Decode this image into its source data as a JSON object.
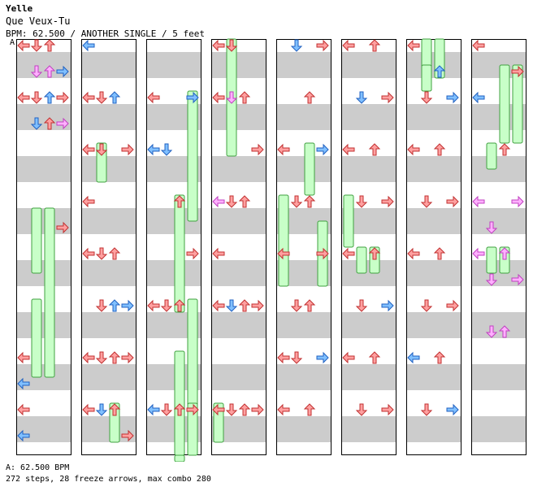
{
  "header": {
    "artist": "Yelle",
    "title": "Que Veux-Tu",
    "info": "BPM: 62.500 / ANOTHER SINGLE / 5 feet"
  },
  "segment_label": "A",
  "footer": {
    "bpm_line": "A: 62.500 BPM",
    "stats_line": "272 steps, 28 freeze arrows, max combo 280"
  },
  "colors": {
    "stripe": "#cccccc",
    "quarter_red": "#ffa0a0",
    "quarter_stroke": "#c03030",
    "eighth_blue": "#80c0ff",
    "eighth_stroke": "#2060c0",
    "sixteenth_pink": "#ffb0ff",
    "sixteenth_stroke": "#c040c0",
    "freeze_fill": "#c8ffc8",
    "freeze_stroke": "#40a040"
  },
  "chart_data": {
    "type": "step-chart",
    "columns": 8,
    "lanes": [
      "left",
      "down",
      "up",
      "right"
    ],
    "notes": [
      [
        0,
        0,
        0,
        "R"
      ],
      [
        0,
        0,
        2,
        "L"
      ],
      [
        0,
        0,
        12,
        "R"
      ],
      [
        0,
        0,
        13,
        "B"
      ],
      [
        0,
        0,
        14,
        "R"
      ],
      [
        0,
        0,
        15,
        "B"
      ],
      [
        0,
        1,
        0,
        "R"
      ],
      [
        0,
        1,
        1,
        "P"
      ],
      [
        0,
        1,
        2,
        "R"
      ],
      [
        0,
        1,
        3,
        "B"
      ],
      [
        0,
        2,
        0,
        "R"
      ],
      [
        0,
        2,
        1,
        "P"
      ],
      [
        0,
        2,
        2,
        "B"
      ],
      [
        0,
        2,
        3,
        "R"
      ],
      [
        0,
        3,
        1,
        "B"
      ],
      [
        0,
        3,
        2,
        "R"
      ],
      [
        0,
        3,
        3,
        "P"
      ],
      [
        0,
        3,
        7,
        "R"
      ],
      [
        1,
        0,
        0,
        "B"
      ],
      [
        1,
        0,
        2,
        "R"
      ],
      [
        1,
        0,
        4,
        "R"
      ],
      [
        1,
        0,
        6,
        "R"
      ],
      [
        1,
        0,
        8,
        "R"
      ],
      [
        1,
        0,
        12,
        "R"
      ],
      [
        1,
        0,
        14,
        "R"
      ],
      [
        1,
        1,
        2,
        "R"
      ],
      [
        1,
        1,
        4,
        "R"
      ],
      [
        1,
        1,
        8,
        "R"
      ],
      [
        1,
        1,
        10,
        "R"
      ],
      [
        1,
        1,
        12,
        "R"
      ],
      [
        1,
        1,
        14,
        "B"
      ],
      [
        1,
        2,
        2,
        "B"
      ],
      [
        1,
        2,
        8,
        "R"
      ],
      [
        1,
        2,
        10,
        "B"
      ],
      [
        1,
        2,
        12,
        "R"
      ],
      [
        1,
        2,
        14,
        "R"
      ],
      [
        1,
        3,
        4,
        "R"
      ],
      [
        1,
        3,
        10,
        "B"
      ],
      [
        1,
        3,
        12,
        "R"
      ],
      [
        1,
        3,
        15,
        "R"
      ],
      [
        2,
        0,
        2,
        "R"
      ],
      [
        2,
        0,
        4,
        "B"
      ],
      [
        2,
        0,
        10,
        "R"
      ],
      [
        2,
        0,
        14,
        "B"
      ],
      [
        2,
        1,
        4,
        "B"
      ],
      [
        2,
        1,
        10,
        "R"
      ],
      [
        2,
        1,
        14,
        "R"
      ],
      [
        2,
        2,
        6,
        "R"
      ],
      [
        2,
        2,
        10,
        "R"
      ],
      [
        2,
        2,
        14,
        "R"
      ],
      [
        2,
        3,
        2,
        "B"
      ],
      [
        2,
        3,
        8,
        "R"
      ],
      [
        2,
        3,
        14,
        "R"
      ],
      [
        3,
        0,
        0,
        "R"
      ],
      [
        3,
        0,
        2,
        "R"
      ],
      [
        3,
        0,
        6,
        "P"
      ],
      [
        3,
        0,
        8,
        "R"
      ],
      [
        3,
        0,
        10,
        "R"
      ],
      [
        3,
        0,
        14,
        "R"
      ],
      [
        3,
        1,
        0,
        "R"
      ],
      [
        3,
        1,
        2,
        "P"
      ],
      [
        3,
        1,
        6,
        "R"
      ],
      [
        3,
        1,
        10,
        "B"
      ],
      [
        3,
        1,
        14,
        "R"
      ],
      [
        3,
        2,
        2,
        "R"
      ],
      [
        3,
        2,
        6,
        "R"
      ],
      [
        3,
        2,
        10,
        "R"
      ],
      [
        3,
        2,
        14,
        "R"
      ],
      [
        3,
        3,
        4,
        "R"
      ],
      [
        3,
        3,
        10,
        "R"
      ],
      [
        3,
        3,
        14,
        "R"
      ],
      [
        4,
        0,
        4,
        "R"
      ],
      [
        4,
        0,
        8,
        "R"
      ],
      [
        4,
        0,
        12,
        "R"
      ],
      [
        4,
        0,
        14,
        "R"
      ],
      [
        4,
        1,
        0,
        "B"
      ],
      [
        4,
        1,
        6,
        "R"
      ],
      [
        4,
        1,
        10,
        "R"
      ],
      [
        4,
        1,
        12,
        "R"
      ],
      [
        4,
        2,
        2,
        "R"
      ],
      [
        4,
        2,
        6,
        "R"
      ],
      [
        4,
        2,
        10,
        "R"
      ],
      [
        4,
        2,
        14,
        "R"
      ],
      [
        4,
        3,
        0,
        "R"
      ],
      [
        4,
        3,
        4,
        "B"
      ],
      [
        4,
        3,
        8,
        "R"
      ],
      [
        4,
        3,
        12,
        "B"
      ],
      [
        5,
        0,
        0,
        "R"
      ],
      [
        5,
        0,
        4,
        "R"
      ],
      [
        5,
        0,
        8,
        "R"
      ],
      [
        5,
        0,
        12,
        "R"
      ],
      [
        5,
        1,
        2,
        "B"
      ],
      [
        5,
        1,
        6,
        "R"
      ],
      [
        5,
        1,
        10,
        "R"
      ],
      [
        5,
        1,
        14,
        "R"
      ],
      [
        5,
        2,
        0,
        "R"
      ],
      [
        5,
        2,
        4,
        "R"
      ],
      [
        5,
        2,
        8,
        "R"
      ],
      [
        5,
        2,
        12,
        "R"
      ],
      [
        5,
        3,
        2,
        "R"
      ],
      [
        5,
        3,
        6,
        "R"
      ],
      [
        5,
        3,
        10,
        "B"
      ],
      [
        5,
        3,
        14,
        "R"
      ],
      [
        6,
        0,
        0,
        "R"
      ],
      [
        6,
        0,
        4,
        "R"
      ],
      [
        6,
        0,
        8,
        "R"
      ],
      [
        6,
        0,
        12,
        "B"
      ],
      [
        6,
        1,
        2,
        "R"
      ],
      [
        6,
        1,
        6,
        "R"
      ],
      [
        6,
        1,
        10,
        "R"
      ],
      [
        6,
        1,
        14,
        "R"
      ],
      [
        6,
        2,
        1,
        "B"
      ],
      [
        6,
        2,
        4,
        "R"
      ],
      [
        6,
        2,
        8,
        "R"
      ],
      [
        6,
        2,
        12,
        "R"
      ],
      [
        6,
        3,
        2,
        "B"
      ],
      [
        6,
        3,
        6,
        "R"
      ],
      [
        6,
        3,
        10,
        "R"
      ],
      [
        6,
        3,
        14,
        "B"
      ],
      [
        7,
        0,
        0,
        "R"
      ],
      [
        7,
        0,
        2,
        "B"
      ],
      [
        7,
        0,
        6,
        "P"
      ],
      [
        7,
        0,
        8,
        "P"
      ],
      [
        7,
        1,
        7,
        "P"
      ],
      [
        7,
        1,
        9,
        "P"
      ],
      [
        7,
        1,
        11,
        "P"
      ],
      [
        7,
        2,
        4,
        "R"
      ],
      [
        7,
        2,
        8,
        "P"
      ],
      [
        7,
        2,
        11,
        "P"
      ],
      [
        7,
        3,
        1,
        "R"
      ],
      [
        7,
        3,
        6,
        "P"
      ],
      [
        7,
        3,
        9,
        "P"
      ]
    ],
    "freezes": [
      [
        0,
        1,
        6.5,
        9
      ],
      [
        0,
        2,
        6.5,
        13
      ],
      [
        0,
        1,
        10,
        13
      ],
      [
        1,
        1,
        4,
        5.5
      ],
      [
        1,
        2,
        14,
        15.5
      ],
      [
        2,
        3,
        2,
        7
      ],
      [
        2,
        2,
        6,
        10.5
      ],
      [
        2,
        3,
        10,
        15
      ],
      [
        2,
        2,
        12,
        16
      ],
      [
        2,
        3,
        14,
        19
      ],
      [
        2,
        2,
        16,
        18.5
      ],
      [
        2,
        3,
        18,
        19
      ],
      [
        3,
        1,
        0,
        4.5
      ],
      [
        3,
        0,
        14,
        15.5
      ],
      [
        4,
        2,
        4,
        6
      ],
      [
        4,
        0,
        6,
        9.5
      ],
      [
        4,
        3,
        7,
        9.5
      ],
      [
        5,
        0,
        6,
        8
      ],
      [
        5,
        1,
        8,
        9
      ],
      [
        5,
        2,
        8,
        9
      ],
      [
        6,
        1,
        0,
        2
      ],
      [
        6,
        2,
        0,
        1.5
      ],
      [
        6,
        1,
        1,
        2
      ],
      [
        7,
        2,
        1,
        4
      ],
      [
        7,
        3,
        1,
        4
      ],
      [
        7,
        1,
        4,
        5
      ],
      [
        7,
        1,
        8,
        9
      ],
      [
        7,
        2,
        8,
        9
      ]
    ]
  }
}
